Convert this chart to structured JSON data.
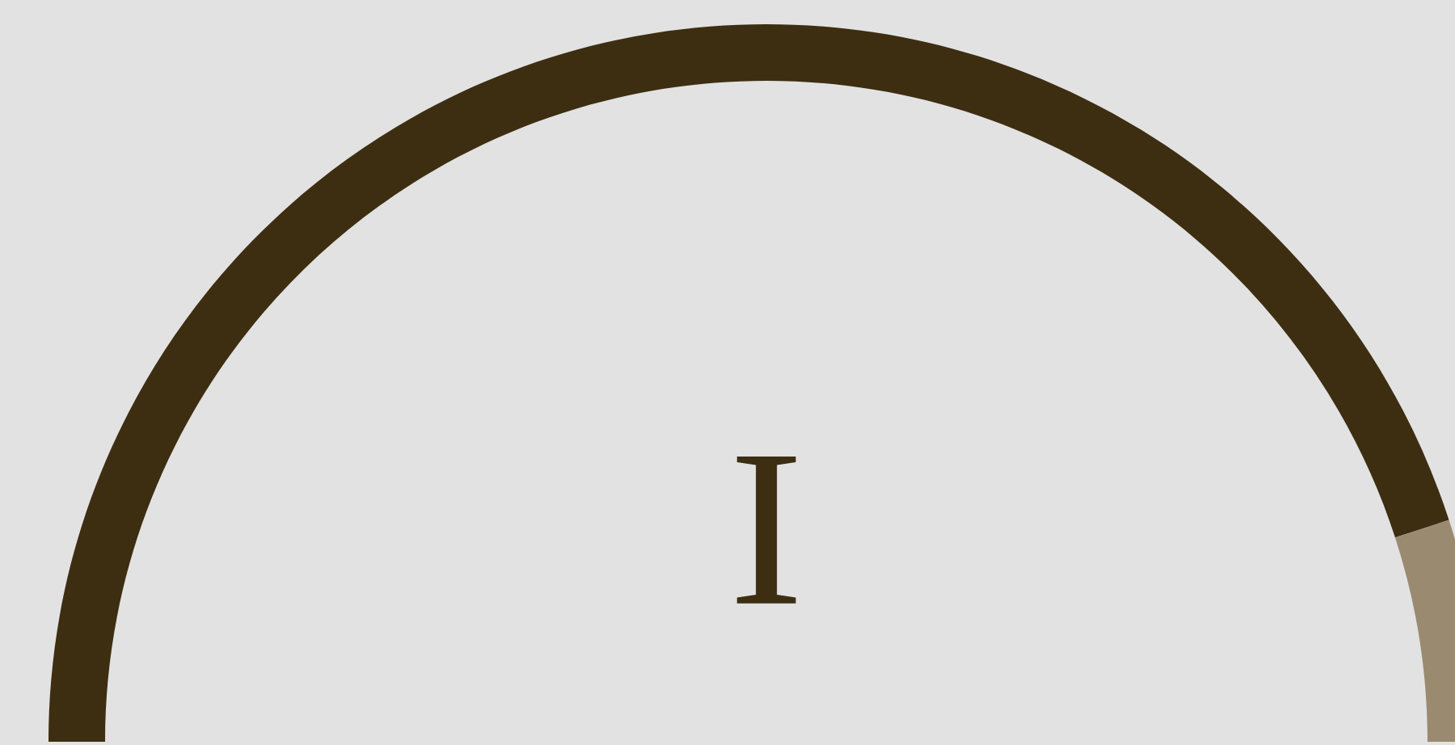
{
  "chart_data": {
    "type": "donut",
    "title": "I",
    "categories": [
      null,
      null
    ],
    "values": [
      90,
      10
    ],
    "colors": [
      "#3d2e12",
      "#9a8a70"
    ]
  }
}
